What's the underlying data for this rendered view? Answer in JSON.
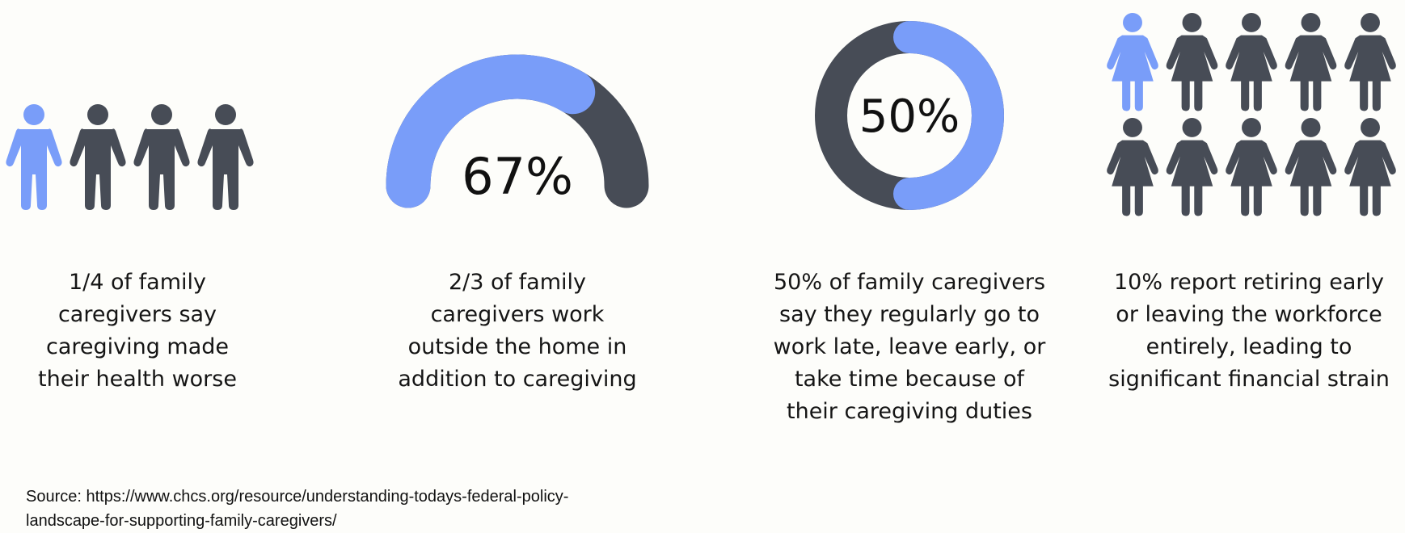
{
  "colors": {
    "highlight": "#799df9",
    "base": "#474c56",
    "background": "#fdfdfa"
  },
  "chart_data": [
    {
      "type": "pictograph",
      "icon": "person-icon",
      "highlighted": 1,
      "total": 4,
      "caption": "1/4 of family caregivers say caregiving made their health worse"
    },
    {
      "type": "gauge",
      "value": 67,
      "label": "67%",
      "caption": "2/3 of family caregivers work outside the home in addition to  caregiving"
    },
    {
      "type": "pie",
      "value": 50,
      "label": "50%",
      "caption": "50% of family caregivers say they regularly go to work late, leave early, or take time because of their caregiving duties"
    },
    {
      "type": "pictograph",
      "icon": "woman-icon",
      "highlighted": 1,
      "total": 10,
      "caption": "10% report retiring early or leaving the workforce entirely, leading to significant financial strain"
    }
  ],
  "captions": {
    "c1": [
      "1/4 of family",
      "caregivers say",
      "caregiving made",
      "their health worse"
    ],
    "c2": [
      "2/3 of family",
      "caregivers work",
      "outside the home in",
      "addition to  caregiving"
    ],
    "c3": [
      "50% of family caregivers",
      "say they regularly go to",
      "work late, leave early, or",
      "take time because of",
      "their caregiving duties"
    ],
    "c4": [
      "10% report retiring early",
      "or leaving the workforce",
      "entirely, leading to",
      "significant financial strain"
    ]
  },
  "source": {
    "line1": "Source: https://www.chcs.org/resource/understanding-todays-federal-policy-",
    "line2": "landscape-for-supporting-family-caregivers/"
  }
}
